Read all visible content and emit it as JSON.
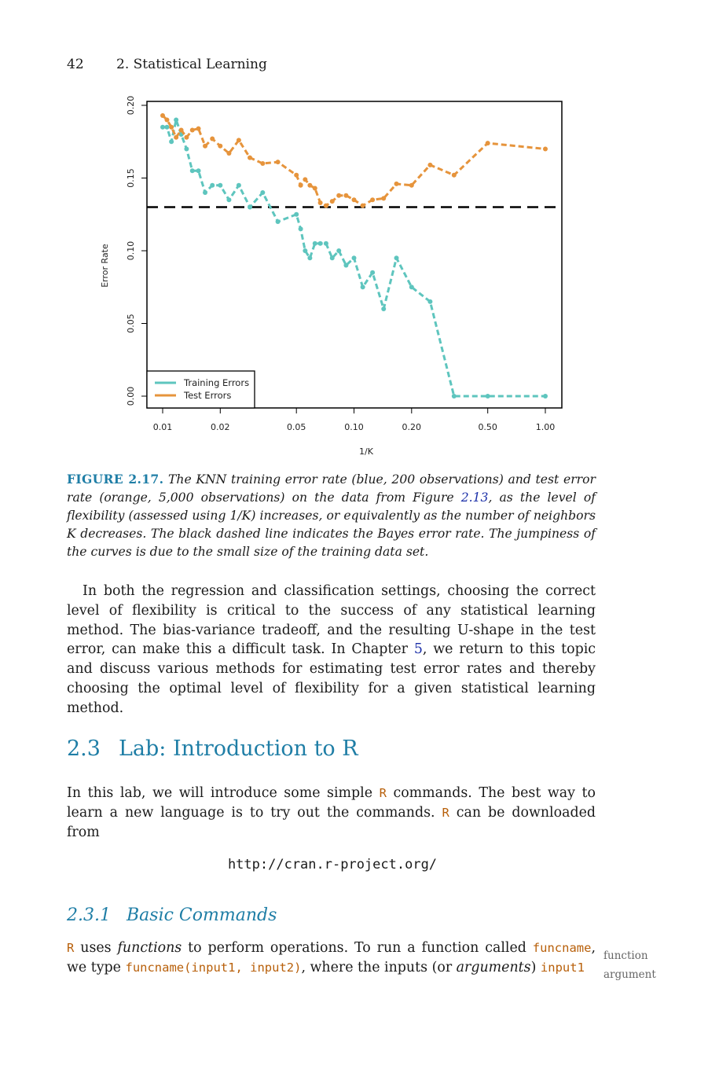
{
  "header": {
    "page_number": "42",
    "chapter_title": "2.  Statistical Learning"
  },
  "figure": {
    "label": "FIGURE 2.17.",
    "caption_1": " The KNN training error rate (blue, 200 observations) and test error rate (orange, 5,000 observations) on the data from Figure ",
    "caption_ref": "2.13",
    "caption_2": ", as the level of flexibility (assessed using 1/K) increases, or equivalently as the number of neighbors K decreases. The black dashed line indicates the Bayes error rate. The jumpiness of the curves is due to the small size of the training data set."
  },
  "chart_data": {
    "type": "line",
    "xlabel": "1/K",
    "ylabel": "Error Rate",
    "x_scale": "log",
    "xlim": [
      0.01,
      1.0
    ],
    "ylim": [
      0.0,
      0.2
    ],
    "x_ticks": [
      0.01,
      0.02,
      0.05,
      0.1,
      0.2,
      0.5,
      1.0
    ],
    "x_tick_labels": [
      "0.01",
      "0.02",
      "0.05",
      "0.10",
      "0.20",
      "0.50",
      "1.00"
    ],
    "y_ticks": [
      0.0,
      0.05,
      0.1,
      0.15,
      0.2
    ],
    "y_tick_labels": [
      "0.00",
      "0.05",
      "0.10",
      "0.15",
      "0.20"
    ],
    "legend_position": "bottom-left",
    "bayes_error_rate": 0.13,
    "colors": {
      "training": "#5ec5be",
      "test": "#e6943c",
      "bayes": "#000000"
    },
    "series": [
      {
        "name": "Training Errors",
        "x": [
          0.01,
          0.01053,
          0.01111,
          0.01176,
          0.0125,
          0.01333,
          0.01429,
          0.01538,
          0.01667,
          0.01818,
          0.02,
          0.02222,
          0.025,
          0.02857,
          0.03333,
          0.04,
          0.05,
          0.05263,
          0.05556,
          0.05882,
          0.0625,
          0.06667,
          0.07143,
          0.07692,
          0.08333,
          0.09091,
          0.1,
          0.11111,
          0.125,
          0.14286,
          0.16667,
          0.2,
          0.25,
          0.33333,
          0.5,
          1.0
        ],
        "y": [
          0.185,
          0.185,
          0.175,
          0.19,
          0.18,
          0.17,
          0.155,
          0.155,
          0.14,
          0.145,
          0.145,
          0.135,
          0.145,
          0.13,
          0.14,
          0.12,
          0.125,
          0.115,
          0.1,
          0.095,
          0.105,
          0.105,
          0.105,
          0.095,
          0.1,
          0.09,
          0.095,
          0.075,
          0.085,
          0.06,
          0.095,
          0.075,
          0.065,
          0.0,
          0.0,
          0.0
        ],
        "note": "last points cluster at high 1/K; y reaches 0.00 at 1/K = 1.00"
      },
      {
        "name": "Test Errors",
        "x": [
          0.01,
          0.01053,
          0.01111,
          0.01176,
          0.0125,
          0.01333,
          0.01429,
          0.01538,
          0.01667,
          0.01818,
          0.02,
          0.02222,
          0.025,
          0.02857,
          0.03333,
          0.04,
          0.05,
          0.05263,
          0.05556,
          0.05882,
          0.0625,
          0.06667,
          0.07143,
          0.07692,
          0.08333,
          0.09091,
          0.1,
          0.11111,
          0.125,
          0.14286,
          0.16667,
          0.2,
          0.25,
          0.33333,
          0.5,
          1.0
        ],
        "y": [
          0.193,
          0.19,
          0.185,
          0.178,
          0.183,
          0.178,
          0.183,
          0.184,
          0.172,
          0.177,
          0.172,
          0.167,
          0.176,
          0.164,
          0.16,
          0.161,
          0.152,
          0.145,
          0.149,
          0.145,
          0.143,
          0.133,
          0.131,
          0.134,
          0.138,
          0.138,
          0.135,
          0.131,
          0.135,
          0.136,
          0.146,
          0.145,
          0.159,
          0.152,
          0.174,
          0.17
        ]
      }
    ]
  },
  "paragraph_1": "In both the regression and classification settings, choosing the correct level of flexibility is critical to the success of any statistical learning method. The bias-variance tradeoff, and the resulting U-shape in the test error, can make this a difficult task. In Chapter ",
  "paragraph_1_ref": "5",
  "paragraph_1_end": ", we return to this topic and discuss various methods for estimating test error rates and thereby choosing the optimal level of flexibility for a given statistical learning method.",
  "section": {
    "number": "2.3",
    "title": "Lab: Introduction to R"
  },
  "paragraph_2": {
    "a": "In this lab, we will introduce some simple ",
    "code1": "R",
    "b": " commands. The best way to learn a new language is to try out the commands. ",
    "code2": "R",
    "c": " can be downloaded from"
  },
  "url": "http://cran.r-project.org/",
  "subsection": {
    "number": "2.3.1",
    "title": "Basic Commands"
  },
  "paragraph_3": {
    "code1": "R",
    "a": " uses ",
    "em1": "functions",
    "b": " to perform operations. To run a function called ",
    "code2": "funcname",
    "c": ", we type ",
    "code3": "funcname(input1, input2)",
    "d": ", where the inputs (or ",
    "em2": "arguments",
    "e": ") ",
    "code4": "input1"
  },
  "margin_notes": [
    "function",
    "argument"
  ]
}
